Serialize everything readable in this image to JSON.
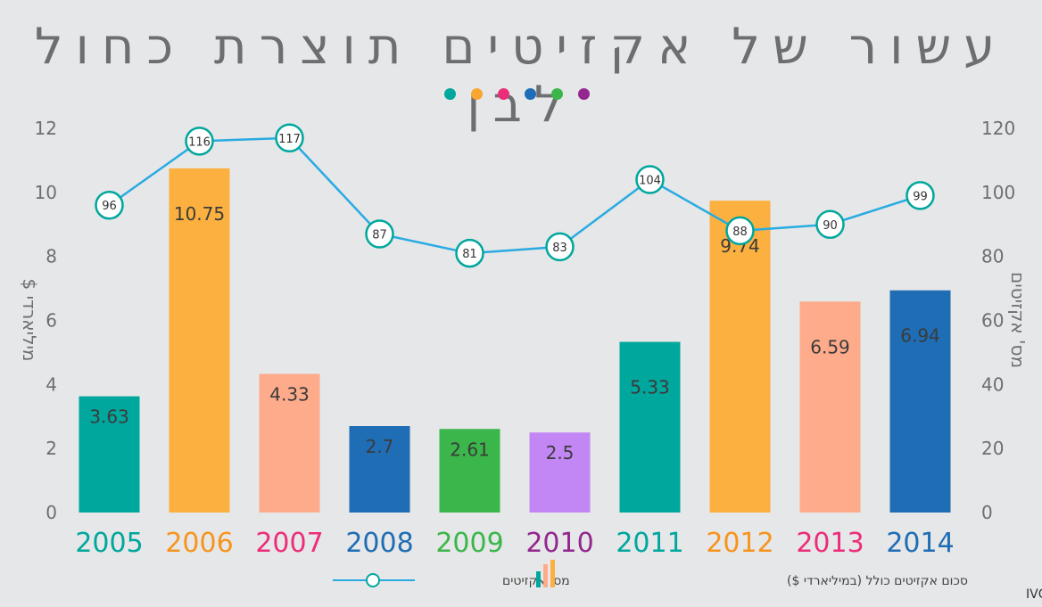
{
  "page": {
    "title": "עשור של אקזיטים תוצרת כחול לבן",
    "source": "מקור : IVC",
    "decor_dot_colors": [
      "#00a79d",
      "#f7a731",
      "#ec2d7a",
      "#1f6db5",
      "#3bb64a",
      "#93278f"
    ]
  },
  "chart_data": {
    "type": "bar",
    "title": "עשור של אקזיטים תוצרת כחול לבן",
    "categories": [
      "2005",
      "2006",
      "2007",
      "2008",
      "2009",
      "2010",
      "2011",
      "2012",
      "2013",
      "2014"
    ],
    "category_colors": [
      "#00a79d",
      "#f7941d",
      "#ec2d7a",
      "#1f6db5",
      "#3bb64a",
      "#93278f",
      "#00a79d",
      "#f7941d",
      "#ec2d7a",
      "#1f6db5"
    ],
    "bar_colors": [
      "#00a79d",
      "#fbb040",
      "#fdab8b",
      "#1f6db5",
      "#3bb64a",
      "#c387f5",
      "#00a79d",
      "#fbb040",
      "#fdab8b",
      "#1f6db5"
    ],
    "ylabel_left": "מיליארדי $",
    "ylabel_right": "מס' אקזיטים",
    "ylim_left": [
      0,
      12
    ],
    "ylim_right": [
      0,
      120
    ],
    "yticks_left": [
      "0",
      "2",
      "4",
      "6",
      "8",
      "10",
      "12"
    ],
    "yticks_right": [
      "0",
      "20",
      "40",
      "60",
      "80",
      "100",
      "120"
    ],
    "series": [
      {
        "name": "סכום אקזיטים כולל (במיליארדי $)",
        "type": "bar",
        "axis": "left",
        "values": [
          3.63,
          10.75,
          4.33,
          2.7,
          2.61,
          2.5,
          5.33,
          9.74,
          6.59,
          6.94
        ],
        "labels": [
          "3.63",
          "10.75",
          "4.33",
          "2.7",
          "2.61",
          "2.5",
          "5.33",
          "9.74",
          "6.59",
          "6.94"
        ]
      },
      {
        "name": "מס' אקזיטים",
        "type": "line",
        "axis": "right",
        "color": "#29abe2",
        "marker_color": "#00a79d",
        "values": [
          96,
          116,
          117,
          87,
          81,
          83,
          104,
          88,
          90,
          99
        ],
        "labels": [
          "96",
          "116",
          "117",
          "87",
          "81",
          "83",
          "104",
          "88",
          "90",
          "99"
        ]
      }
    ],
    "legend_placement": "bottom-center",
    "grid": false
  }
}
